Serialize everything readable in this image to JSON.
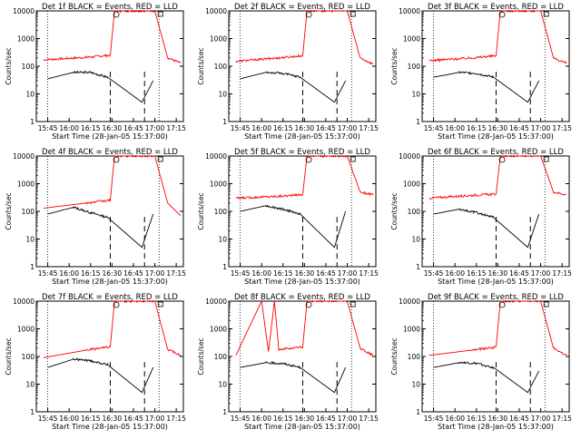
{
  "figure": {
    "xlabel": "Start Time (28-Jan-05 15:37:00)",
    "ylabel": "Counts/sec",
    "xticks": [
      "15:45",
      "16:00",
      "16:15",
      "16:30",
      "16:45",
      "17:00",
      "17:15"
    ],
    "yticks": [
      "1",
      "10",
      "100",
      "1000",
      "10000"
    ],
    "colors": {
      "events": "#000000",
      "lld": "#ff0000",
      "axes": "#000000"
    }
  },
  "chart_data": [
    {
      "type": "line",
      "title": "Det 1f BLACK = Events, RED = LLD",
      "ylim": [
        1,
        10000
      ],
      "yscale": "log",
      "x_minutes": {
        "start": "15:37",
        "end": "17:20"
      },
      "series": [
        {
          "name": "Events",
          "points": [
            [
              15.75,
              35
            ],
            [
              16.05,
              60
            ],
            [
              16.25,
              60
            ],
            [
              16.45,
              40
            ],
            [
              16.85,
              5
            ],
            [
              16.98,
              30
            ]
          ]
        },
        {
          "name": "LLD",
          "points": [
            [
              15.7,
              170
            ],
            [
              16.2,
              210
            ],
            [
              16.48,
              250
            ],
            [
              16.53,
              10000
            ],
            [
              17.0,
              10000
            ],
            [
              17.15,
              200
            ],
            [
              17.3,
              130
            ]
          ]
        }
      ]
    },
    {
      "type": "line",
      "title": "Det 2f BLACK = Events, RED = LLD",
      "ylim": [
        1,
        10000
      ],
      "yscale": "log",
      "series": [
        {
          "name": "Events",
          "points": [
            [
              15.75,
              35
            ],
            [
              16.05,
              60
            ],
            [
              16.25,
              55
            ],
            [
              16.45,
              40
            ],
            [
              16.85,
              5
            ],
            [
              16.98,
              30
            ]
          ]
        },
        {
          "name": "LLD",
          "points": [
            [
              15.7,
              150
            ],
            [
              16.2,
              200
            ],
            [
              16.48,
              240
            ],
            [
              16.53,
              10000
            ],
            [
              17.0,
              10000
            ],
            [
              17.15,
              200
            ],
            [
              17.3,
              120
            ]
          ]
        }
      ]
    },
    {
      "type": "line",
      "title": "Det 3f BLACK = Events, RED = LLD",
      "ylim": [
        1,
        10000
      ],
      "yscale": "log",
      "series": [
        {
          "name": "Events",
          "points": [
            [
              15.75,
              40
            ],
            [
              16.05,
              60
            ],
            [
              16.25,
              55
            ],
            [
              16.45,
              40
            ],
            [
              16.85,
              5
            ],
            [
              16.98,
              30
            ]
          ]
        },
        {
          "name": "LLD",
          "points": [
            [
              15.7,
              160
            ],
            [
              16.2,
              200
            ],
            [
              16.48,
              240
            ],
            [
              16.53,
              10000
            ],
            [
              17.0,
              10000
            ],
            [
              17.15,
              200
            ],
            [
              17.3,
              130
            ]
          ]
        }
      ]
    },
    {
      "type": "line",
      "title": "Det 4f BLACK = Events, RED = LLD",
      "ylim": [
        1,
        10000
      ],
      "yscale": "log",
      "series": [
        {
          "name": "Events",
          "points": [
            [
              15.75,
              80
            ],
            [
              16.05,
              140
            ],
            [
              16.25,
              90
            ],
            [
              16.45,
              60
            ],
            [
              16.85,
              5
            ],
            [
              16.98,
              80
            ]
          ]
        },
        {
          "name": "LLD",
          "points": [
            [
              15.7,
              130
            ],
            [
              16.2,
              200
            ],
            [
              16.48,
              250
            ],
            [
              16.53,
              10000
            ],
            [
              17.0,
              10000
            ],
            [
              17.15,
              200
            ],
            [
              17.3,
              70
            ]
          ]
        }
      ]
    },
    {
      "type": "line",
      "title": "Det 5f BLACK = Events, RED = LLD",
      "ylim": [
        1,
        10000
      ],
      "yscale": "log",
      "series": [
        {
          "name": "Events",
          "points": [
            [
              15.75,
              100
            ],
            [
              16.05,
              160
            ],
            [
              16.25,
              120
            ],
            [
              16.45,
              80
            ],
            [
              16.85,
              5
            ],
            [
              16.98,
              100
            ]
          ]
        },
        {
          "name": "LLD",
          "points": [
            [
              15.7,
              300
            ],
            [
              16.2,
              350
            ],
            [
              16.48,
              400
            ],
            [
              16.53,
              10000
            ],
            [
              17.0,
              10000
            ],
            [
              17.15,
              500
            ],
            [
              17.3,
              400
            ]
          ]
        }
      ]
    },
    {
      "type": "line",
      "title": "Det 6f BLACK = Events, RED = LLD",
      "ylim": [
        1,
        10000
      ],
      "yscale": "log",
      "series": [
        {
          "name": "Events",
          "points": [
            [
              15.75,
              80
            ],
            [
              16.05,
              120
            ],
            [
              16.25,
              90
            ],
            [
              16.45,
              60
            ],
            [
              16.85,
              5
            ],
            [
              16.98,
              80
            ]
          ]
        },
        {
          "name": "LLD",
          "points": [
            [
              15.7,
              300
            ],
            [
              16.2,
              380
            ],
            [
              16.48,
              420
            ],
            [
              16.53,
              10000
            ],
            [
              17.0,
              10000
            ],
            [
              17.15,
              500
            ],
            [
              17.3,
              400
            ]
          ]
        }
      ]
    },
    {
      "type": "line",
      "title": "Det 7f BLACK = Events, RED = LLD",
      "ylim": [
        1,
        10000
      ],
      "yscale": "log",
      "series": [
        {
          "name": "Events",
          "points": [
            [
              15.75,
              40
            ],
            [
              16.05,
              80
            ],
            [
              16.25,
              70
            ],
            [
              16.45,
              50
            ],
            [
              16.85,
              5
            ],
            [
              16.98,
              40
            ]
          ]
        },
        {
          "name": "LLD",
          "points": [
            [
              15.7,
              90
            ],
            [
              16.2,
              170
            ],
            [
              16.48,
              220
            ],
            [
              16.53,
              10000
            ],
            [
              17.0,
              10000
            ],
            [
              17.15,
              180
            ],
            [
              17.3,
              110
            ]
          ]
        }
      ]
    },
    {
      "type": "line",
      "title": "Det 8f BLACK = Events, RED = LLD",
      "ylim": [
        1,
        10000
      ],
      "yscale": "log",
      "series": [
        {
          "name": "Events",
          "points": [
            [
              15.75,
              40
            ],
            [
              16.05,
              60
            ],
            [
              16.25,
              55
            ],
            [
              16.45,
              40
            ],
            [
              16.85,
              5
            ],
            [
              16.98,
              40
            ]
          ]
        },
        {
          "name": "LLD",
          "points": [
            [
              15.7,
              110
            ],
            [
              16.0,
              10000
            ],
            [
              16.08,
              150
            ],
            [
              16.15,
              10000
            ],
            [
              16.2,
              180
            ],
            [
              16.48,
              220
            ],
            [
              16.53,
              10000
            ],
            [
              17.0,
              10000
            ],
            [
              17.15,
              200
            ],
            [
              17.3,
              110
            ]
          ]
        }
      ]
    },
    {
      "type": "line",
      "title": "Det 9f BLACK = Events, RED = LLD",
      "ylim": [
        1,
        10000
      ],
      "yscale": "log",
      "series": [
        {
          "name": "Events",
          "points": [
            [
              15.75,
              40
            ],
            [
              16.05,
              60
            ],
            [
              16.25,
              55
            ],
            [
              16.45,
              40
            ],
            [
              16.85,
              5
            ],
            [
              16.98,
              30
            ]
          ]
        },
        {
          "name": "LLD",
          "points": [
            [
              15.7,
              110
            ],
            [
              16.2,
              170
            ],
            [
              16.48,
              220
            ],
            [
              16.53,
              10000
            ],
            [
              17.0,
              10000
            ],
            [
              17.15,
              200
            ],
            [
              17.3,
              110
            ]
          ]
        }
      ]
    }
  ]
}
